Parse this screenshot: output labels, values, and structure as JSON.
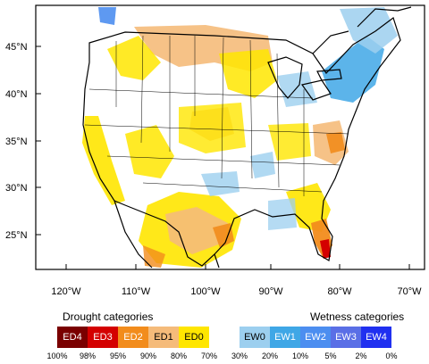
{
  "map": {
    "lat_labels": [
      "45°N",
      "40°N",
      "35°N",
      "30°N",
      "25°N"
    ],
    "lon_labels": [
      "120°W",
      "110°W",
      "100°W",
      "90°W",
      "80°W",
      "70°W"
    ]
  },
  "legend": {
    "drought_title": "Drought categories",
    "wetness_title": "Wetness categories",
    "categories": [
      {
        "label": "ED4",
        "color": "#7a0000",
        "text_color": "#ffffff"
      },
      {
        "label": "ED3",
        "color": "#d40000",
        "text_color": "#ffffff"
      },
      {
        "label": "ED2",
        "color": "#f28c1c",
        "text_color": "#ffffff"
      },
      {
        "label": "ED1",
        "color": "#f5bb7a",
        "text_color": "#000000"
      },
      {
        "label": "ED0",
        "color": "#ffe600",
        "text_color": "#000000"
      },
      {
        "label": "",
        "color": "#ffffff",
        "text_color": "#000000"
      },
      {
        "label": "EW0",
        "color": "#9ccfef",
        "text_color": "#000000"
      },
      {
        "label": "EW1",
        "color": "#3fa7e6",
        "text_color": "#ffffff"
      },
      {
        "label": "EW2",
        "color": "#4c8ef0",
        "text_color": "#ffffff"
      },
      {
        "label": "EW3",
        "color": "#5a6fe6",
        "text_color": "#ffffff"
      },
      {
        "label": "EW4",
        "color": "#2030f0",
        "text_color": "#ffffff"
      }
    ],
    "percentiles": [
      "100%",
      "98%",
      "95%",
      "90%",
      "80%",
      "70%",
      "30%",
      "20%",
      "10%",
      "5%",
      "2%",
      "0%"
    ]
  }
}
